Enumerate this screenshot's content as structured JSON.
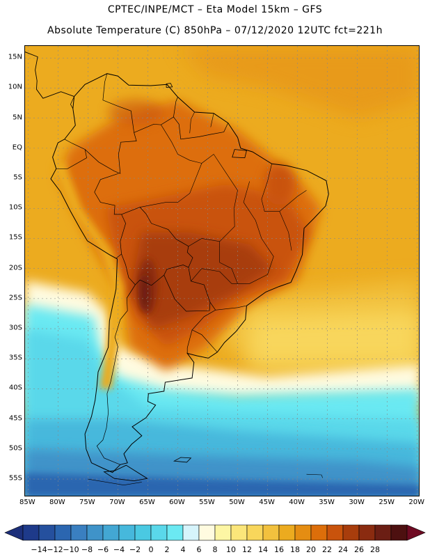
{
  "header": {
    "line1": "CPTEC/INPE/MCT –  Eta Model 15km – GFS",
    "line2": "Absolute Temperature (C) 850hPa – 07/12/2020 12UTC fct=221h"
  },
  "axes": {
    "lat_labels": [
      "15N",
      "10N",
      "5N",
      "EQ",
      "5S",
      "10S",
      "15S",
      "20S",
      "25S",
      "30S",
      "35S",
      "40S",
      "45S",
      "50S",
      "55S"
    ],
    "lat_values": [
      15,
      10,
      5,
      0,
      -5,
      -10,
      -15,
      -20,
      -25,
      -30,
      -35,
      -40,
      -45,
      -50,
      -55
    ],
    "lon_labels": [
      "85W",
      "80W",
      "75W",
      "70W",
      "65W",
      "60W",
      "55W",
      "50W",
      "45W",
      "40W",
      "35W",
      "30W",
      "25W",
      "20W"
    ],
    "lon_values": [
      -85,
      -80,
      -75,
      -70,
      -65,
      -60,
      -55,
      -50,
      -45,
      -40,
      -35,
      -30,
      -25,
      -20
    ],
    "lat_range": [
      -58,
      17
    ],
    "lon_range": [
      -85.5,
      -19.5
    ]
  },
  "colorbar": {
    "labels": [
      "-14",
      "-12",
      "-10",
      "-8",
      "-6",
      "-4",
      "-2",
      "0",
      "2",
      "4",
      "6",
      "8",
      "10",
      "12",
      "14",
      "16",
      "18",
      "20",
      "22",
      "24",
      "26",
      "28"
    ],
    "colors": [
      "#1e3a8a",
      "#25509e",
      "#2b66b0",
      "#3a7fc0",
      "#3f93c9",
      "#43a7d3",
      "#46b8dc",
      "#4ac9e2",
      "#5ad8ea",
      "#6be9f2",
      "#d6f4fb",
      "#fffbe0",
      "#fdf6a4",
      "#fbe67a",
      "#f8d65b",
      "#f2c13e",
      "#ecab1f",
      "#e58d12",
      "#dd6e0a",
      "#c9530c",
      "#a83d0c",
      "#8a2b10",
      "#6b1e14",
      "#4d1010"
    ],
    "low_color": "#1c2f7a",
    "high_color": "#6e0a22"
  },
  "map": {
    "ocean_color": "#ecab1f",
    "grid_color": "#888888",
    "coast_color": "#000000"
  }
}
